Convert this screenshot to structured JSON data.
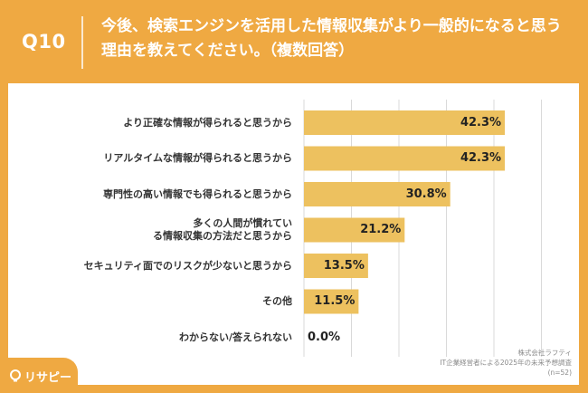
{
  "question": {
    "number": "Q10",
    "title": "今後、検索エンジンを活用した情報収集がより一般的になると思う理由を教えてください。（複数回答）"
  },
  "chart_data": {
    "type": "bar",
    "orientation": "horizontal",
    "categories": [
      "より正確な情報が得られると思うから",
      "リアルタイムな情報が得られると思うから",
      "専門性の高い情報でも得られると思うから",
      "多くの人間が慣れている情報収集の方法だと思うから",
      "セキュリティ面でのリスクが少ないと思うから",
      "その他",
      "わからない/答えられない"
    ],
    "values": [
      42.3,
      42.3,
      30.8,
      21.2,
      13.5,
      11.5,
      0.0
    ],
    "value_labels": [
      "42.3%",
      "42.3%",
      "30.8%",
      "21.2%",
      "13.5%",
      "11.5%",
      "0.0%"
    ],
    "xlim": [
      0,
      50
    ],
    "grid": true,
    "bar_color": "#EDC15F"
  },
  "source": {
    "company": "株式会社ラフティ",
    "survey": "IT企業経営者による2025年の未来予想調査",
    "sample": "(n=52)"
  },
  "logo": {
    "text": "リサピー"
  },
  "colors": {
    "background": "#EFA942",
    "bar": "#EDC15F",
    "grid": "#D9D9D9"
  }
}
